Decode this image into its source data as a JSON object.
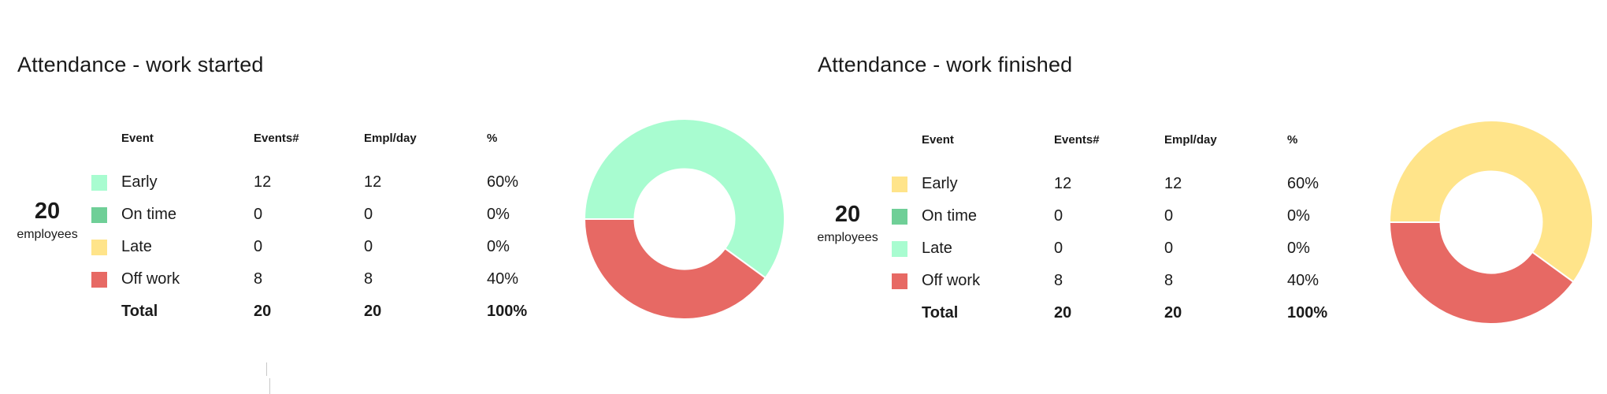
{
  "chart_data": [
    {
      "type": "pie",
      "title": "Attendance - work started",
      "summary": {
        "count": "20",
        "label": "employees"
      },
      "columns": [
        "Event",
        "Events#",
        "Empl/day",
        "%"
      ],
      "rows": [
        {
          "event": "Early",
          "events": "12",
          "empl_day": "12",
          "pct": "60%",
          "value": 12,
          "color": "#a8fcd0"
        },
        {
          "event": "On time",
          "events": "0",
          "empl_day": "0",
          "pct": "0%",
          "value": 0,
          "color": "#6fcf97"
        },
        {
          "event": "Late",
          "events": "0",
          "empl_day": "0",
          "pct": "0%",
          "value": 0,
          "color": "#ffe48a"
        },
        {
          "event": "Off work",
          "events": "8",
          "empl_day": "8",
          "pct": "40%",
          "value": 8,
          "color": "#e76964"
        }
      ],
      "total": {
        "label": "Total",
        "events": "20",
        "empl_day": "20",
        "pct": "100%"
      },
      "donut": true
    },
    {
      "type": "pie",
      "title": "Attendance - work finished",
      "summary": {
        "count": "20",
        "label": "employees"
      },
      "columns": [
        "Event",
        "Events#",
        "Empl/day",
        "%"
      ],
      "rows": [
        {
          "event": "Early",
          "events": "12",
          "empl_day": "12",
          "pct": "60%",
          "value": 12,
          "color": "#ffe48a"
        },
        {
          "event": "On time",
          "events": "0",
          "empl_day": "0",
          "pct": "0%",
          "value": 0,
          "color": "#6fcf97"
        },
        {
          "event": "Late",
          "events": "0",
          "empl_day": "0",
          "pct": "0%",
          "value": 0,
          "color": "#a8fcd0"
        },
        {
          "event": "Off work",
          "events": "8",
          "empl_day": "8",
          "pct": "40%",
          "value": 8,
          "color": "#e76964"
        }
      ],
      "total": {
        "label": "Total",
        "events": "20",
        "empl_day": "20",
        "pct": "100%"
      },
      "donut": true
    }
  ]
}
